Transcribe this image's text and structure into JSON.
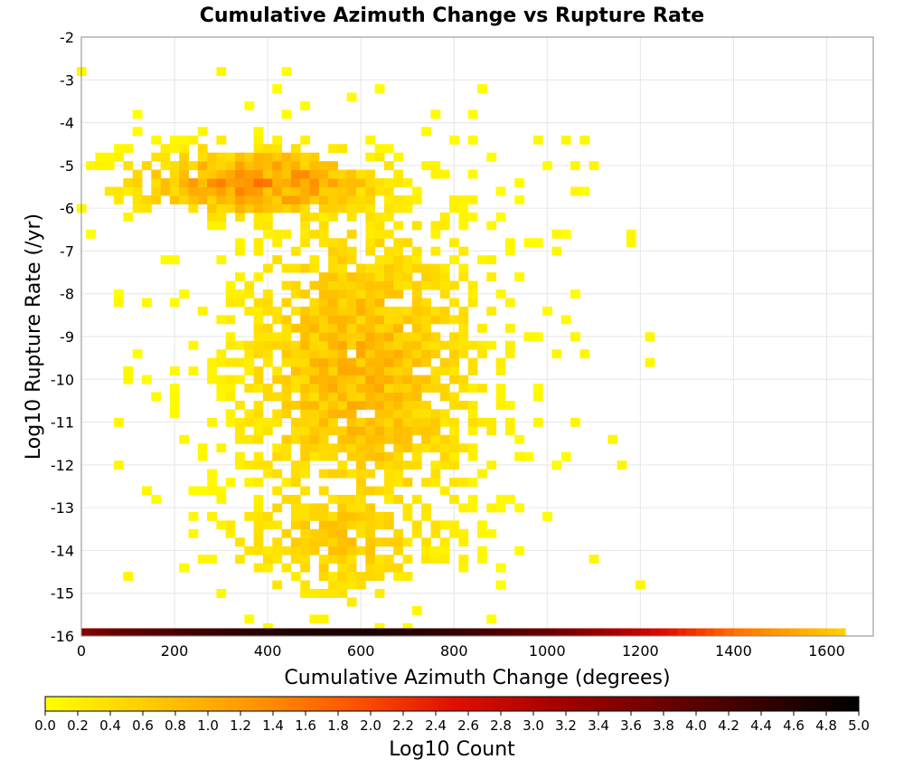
{
  "chart_data": {
    "type": "heatmap",
    "title": "Cumulative Azimuth Change vs Rupture Rate",
    "xlabel": "Cumulative Azimuth Change (degrees)",
    "ylabel": "Log10 Rupture Rate (/yr)",
    "xlim": [
      0,
      1700
    ],
    "ylim": [
      -16,
      -2
    ],
    "x_ticks": [
      "0",
      "200",
      "400",
      "600",
      "800",
      "1000",
      "1200",
      "1400",
      "1600"
    ],
    "y_ticks": [
      "-2",
      "-3",
      "-4",
      "-5",
      "-6",
      "-7",
      "-8",
      "-9",
      "-10",
      "-11",
      "-12",
      "-13",
      "-14",
      "-15",
      "-16"
    ],
    "grid": true,
    "bin_width_x": 20,
    "bin_height_y": 0.2,
    "colorbar": {
      "label": "Log10 Count",
      "range": [
        0.0,
        5.0
      ],
      "ticks": [
        "0.0",
        "0.2",
        "0.4",
        "0.6",
        "0.8",
        "1.0",
        "1.2",
        "1.4",
        "1.6",
        "1.8",
        "2.0",
        "2.2",
        "2.4",
        "2.6",
        "2.8",
        "3.0",
        "3.2",
        "3.4",
        "3.6",
        "3.8",
        "4.0",
        "4.2",
        "4.4",
        "4.6",
        "4.8",
        "5.0"
      ],
      "colormap": [
        "#ffff00",
        "#ffcc00",
        "#ff9900",
        "#ff5500",
        "#e01000",
        "#a80000",
        "#700000",
        "#380000",
        "#000000"
      ]
    },
    "bottom_row": {
      "y": -16,
      "x_range": [
        0,
        1620
      ],
      "log10_count_profile": [
        [
          0,
          3.5
        ],
        [
          60,
          3.8
        ],
        [
          200,
          4.2
        ],
        [
          400,
          4.6
        ],
        [
          600,
          4.7
        ],
        [
          800,
          4.4
        ],
        [
          1000,
          3.8
        ],
        [
          1100,
          3.3
        ],
        [
          1200,
          2.8
        ],
        [
          1300,
          2.2
        ],
        [
          1400,
          1.6
        ],
        [
          1500,
          1.2
        ],
        [
          1620,
          0.6
        ]
      ]
    },
    "density_blobs": [
      {
        "x_center": 380,
        "y_center": -5.4,
        "x_spread": 260,
        "y_spread": 0.8,
        "peak_log10_count": 1.45
      },
      {
        "x_center": 600,
        "y_center": -9.8,
        "x_spread": 260,
        "y_spread": 3.8,
        "peak_log10_count": 0.95
      },
      {
        "x_center": 560,
        "y_center": -13.6,
        "x_spread": 240,
        "y_spread": 1.6,
        "peak_log10_count": 0.7
      }
    ],
    "outlier_points": [
      {
        "x": 0,
        "y": -2.8,
        "log10_count": 0.1
      },
      {
        "x": 300,
        "y": -2.8,
        "log10_count": 0.1
      },
      {
        "x": 1180,
        "y": -6.6,
        "log10_count": 0.1
      },
      {
        "x": 1180,
        "y": -6.8,
        "log10_count": 0.1
      },
      {
        "x": 1220,
        "y": -9.0,
        "log10_count": 0.1
      },
      {
        "x": 1220,
        "y": -9.6,
        "log10_count": 0.1
      },
      {
        "x": 1140,
        "y": -11.4,
        "log10_count": 0.1
      },
      {
        "x": 1160,
        "y": -12.0,
        "log10_count": 0.1
      },
      {
        "x": 1200,
        "y": -14.8,
        "log10_count": 0.1
      },
      {
        "x": 1100,
        "y": -14.2,
        "log10_count": 0.1
      },
      {
        "x": 1060,
        "y": -5.0,
        "log10_count": 0.1
      },
      {
        "x": 1100,
        "y": -5.0,
        "log10_count": 0.1
      },
      {
        "x": 1080,
        "y": -4.4,
        "log10_count": 0.1
      },
      {
        "x": 980,
        "y": -4.4,
        "log10_count": 0.1
      },
      {
        "x": 1040,
        "y": -4.4,
        "log10_count": 0.1
      },
      {
        "x": 1060,
        "y": -5.6,
        "log10_count": 0.1
      },
      {
        "x": 1020,
        "y": -7.0,
        "log10_count": 0.1
      },
      {
        "x": 1020,
        "y": -6.6,
        "log10_count": 0.1
      },
      {
        "x": 1060,
        "y": -9.0,
        "log10_count": 0.1
      },
      {
        "x": 1020,
        "y": -9.4,
        "log10_count": 0.1
      },
      {
        "x": 1080,
        "y": -9.4,
        "log10_count": 0.1
      },
      {
        "x": 1060,
        "y": -11.0,
        "log10_count": 0.1
      },
      {
        "x": 80,
        "y": -8.2,
        "log10_count": 0.1
      },
      {
        "x": 140,
        "y": -8.2,
        "log10_count": 0.1
      },
      {
        "x": 100,
        "y": -9.8,
        "log10_count": 0.1
      },
      {
        "x": 100,
        "y": -10.0,
        "log10_count": 0.1
      },
      {
        "x": 80,
        "y": -11.0,
        "log10_count": 0.1
      },
      {
        "x": 80,
        "y": -12.0,
        "log10_count": 0.1
      },
      {
        "x": 100,
        "y": -14.6,
        "log10_count": 0.1
      },
      {
        "x": 140,
        "y": -12.6,
        "log10_count": 0.1
      }
    ]
  }
}
